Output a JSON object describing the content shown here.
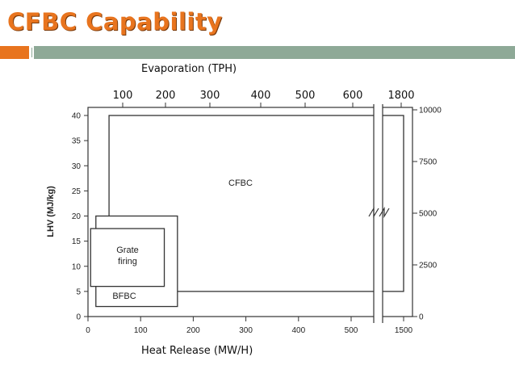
{
  "slide": {
    "title": "CFBC Capability",
    "accent_orange": "#e8741e",
    "accent_green": "#8ea997"
  },
  "chart_data": {
    "type": "area",
    "top_axis": {
      "label": "Evaporation (TPH)",
      "ticks": [
        "100",
        "200",
        "300",
        "400",
        "500",
        "600",
        "1800"
      ]
    },
    "x_axis": {
      "label": "Heat Release (MW/H)",
      "ticks": [
        0,
        100,
        200,
        300,
        400,
        500,
        1500
      ],
      "break_between": [
        500,
        1500
      ]
    },
    "y_axis": {
      "label": "LHV (MJ/kg)",
      "ticks": [
        0,
        5,
        10,
        15,
        20,
        25,
        30,
        35,
        40
      ],
      "ylim": [
        0,
        40
      ]
    },
    "right_axis": {
      "ticks": [
        0,
        2500,
        5000,
        7500,
        10000
      ],
      "ylim": [
        0,
        10000
      ]
    },
    "regions": [
      {
        "name": "CFBC",
        "x_range": [
          40,
          1500
        ],
        "y_range": [
          5,
          40
        ]
      },
      {
        "name": "BFBC",
        "x_range": [
          15,
          170
        ],
        "y_range": [
          2,
          20
        ]
      },
      {
        "name": "Grate firing",
        "x_range": [
          5,
          145
        ],
        "y_range": [
          6,
          17.5
        ]
      }
    ]
  }
}
